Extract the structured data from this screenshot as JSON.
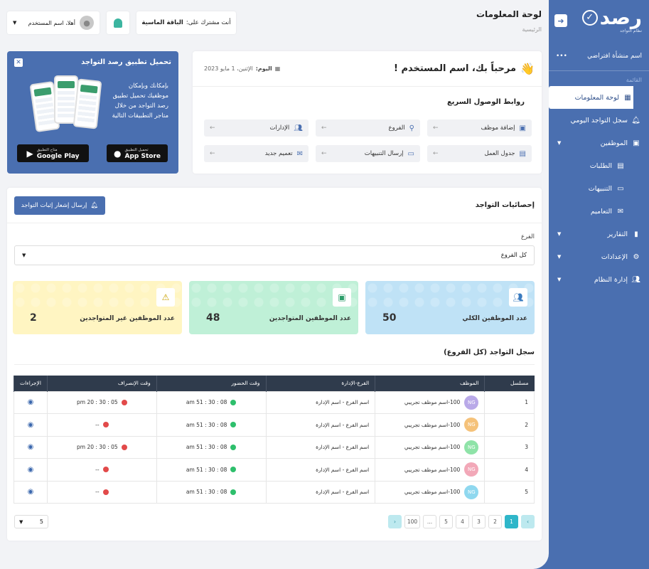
{
  "sidebar": {
    "logo_text": "رصد",
    "logo_sub": "نظام التواجد",
    "org_name": "اسم منشأة افتراضي",
    "section_label": "القائمة",
    "items": [
      {
        "label": "لوحة المعلومات",
        "icon": "dashboard-icon"
      },
      {
        "label": "سجل التواجد اليومي",
        "icon": "bell-icon"
      },
      {
        "label": "الموظفين",
        "icon": "briefcase-icon"
      },
      {
        "label": "الطلبات",
        "icon": "document-icon"
      },
      {
        "label": "التنبيهات",
        "icon": "alert-card-icon"
      },
      {
        "label": "التعاميم",
        "icon": "mail-icon"
      },
      {
        "label": "التقارير",
        "icon": "chart-icon"
      },
      {
        "label": "الإعدادات",
        "icon": "gear-icon"
      },
      {
        "label": "إدارة النظام",
        "icon": "users-icon"
      }
    ]
  },
  "header": {
    "title": "لوحة المعلومات",
    "breadcrumb": "الرئيسية",
    "subscription_prefix": "أنت مشترك على:",
    "subscription_plan": "الباقة الماسية",
    "greeting": "أهلا، اسم المستخدم"
  },
  "welcome": {
    "title": "مرحباً بك، اسم المستخدم !",
    "date_label": "اليوم:",
    "date_value": "الإثنين، 1 مايو 2023",
    "quick_title": "روابط الوصول السريع",
    "quick_links": [
      {
        "label": "إضافة موظف"
      },
      {
        "label": "الفروع"
      },
      {
        "label": "الإدارات"
      },
      {
        "label": "جدول العمل"
      },
      {
        "label": "إرسال التنبيهات"
      },
      {
        "label": "تعميم جديد"
      }
    ]
  },
  "promo": {
    "title": "تحميل تطبيق رصد التواجد",
    "text": "بإمكانك وبإمكان موظفيك تحميل تطبيق رصد التواجد من خلال متاجر التطبيقات التالية",
    "appstore_small": "تحميل التطبيق",
    "appstore_big": "App Store",
    "googleplay_small": "متاح التطبيق",
    "googleplay_big": "Google Play"
  },
  "stats": {
    "title": "إحصائيات التواجد",
    "send_button": "إرسال إشعار إثبات التواجد",
    "branch_label": "الفرع",
    "branch_value": "كل الفروع",
    "cards": [
      {
        "label": "عدد الموظفين الكلي",
        "value": "50"
      },
      {
        "label": "عدد الموظفين المتواجدين",
        "value": "48"
      },
      {
        "label": "عدد الموظفين غير المتواجدين",
        "value": "2"
      }
    ]
  },
  "log": {
    "title": "سجل التواجد (كل الفروع)",
    "columns": [
      "مسلسل",
      "الموظف",
      "الفرع-الإدارة",
      "وقت الحضور",
      "وقت الإنصراف",
      "الإجراءات"
    ],
    "rows": [
      {
        "serial": "1",
        "avatar": "NG",
        "color": "#b9a9e8",
        "employee": "100-اسم موظف تجريبي",
        "branch": "اسم الفرع - اسم الإدارة",
        "checkin": "08 : 30 : 51 am",
        "checkout": "05 : 30 : 20 pm"
      },
      {
        "serial": "2",
        "avatar": "NG",
        "color": "#f5c27a",
        "employee": "100-اسم موظف تجريبي",
        "branch": "اسم الفرع - اسم الإدارة",
        "checkin": "08 : 30 : 51 am",
        "checkout": "--"
      },
      {
        "serial": "3",
        "avatar": "NG",
        "color": "#8fe3a8",
        "employee": "100-اسم موظف تجريبي",
        "branch": "اسم الفرع - اسم الإدارة",
        "checkin": "08 : 30 : 51 am",
        "checkout": "05 : 30 : 20 pm"
      },
      {
        "serial": "4",
        "avatar": "NG",
        "color": "#f2a8b8",
        "employee": "100-اسم موظف تجريبي",
        "branch": "اسم الفرع - اسم الإدارة",
        "checkin": "08 : 30 : 51 am",
        "checkout": "--"
      },
      {
        "serial": "5",
        "avatar": "NG",
        "color": "#8fd8ef",
        "employee": "100-اسم موظف تجريبي",
        "branch": "اسم الفرع - اسم الإدارة",
        "checkin": "08 : 30 : 51 am",
        "checkout": "--"
      }
    ]
  },
  "pagination": {
    "pages": [
      "1",
      "2",
      "3",
      "4",
      "5",
      "...",
      "100"
    ],
    "current": "1",
    "per_page": "5"
  },
  "colors": {
    "primary": "#4a6fb0",
    "teal": "#2fb6c9",
    "dark_header": "#2f3b4c"
  }
}
